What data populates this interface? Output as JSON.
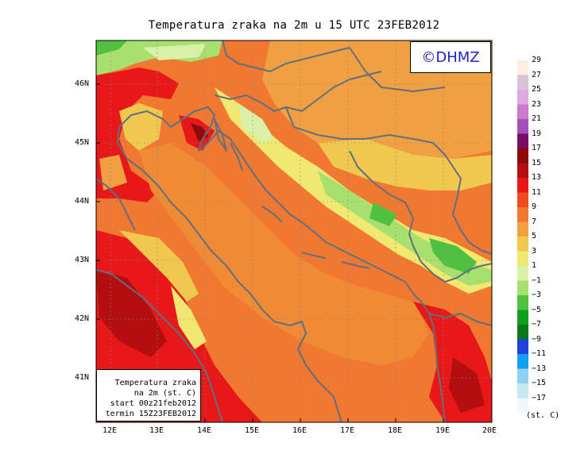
{
  "title": "Temperatura zraka na 2m u 15 UTC 23FEB2012",
  "logo": "©DHMZ",
  "info_box": [
    "Temperatura zraka",
    "na 2m (st. C)",
    "start 00z21feb2012",
    "termin 15Z23FEB2012"
  ],
  "lat_labels": [
    "46N",
    "45N",
    "44N",
    "43N",
    "42N",
    "41N"
  ],
  "lon_labels": [
    "12E",
    "13E",
    "14E",
    "15E",
    "16E",
    "17E",
    "18E",
    "19E",
    "20E"
  ],
  "legend": {
    "unit": "(st. C)",
    "levels": [
      "29",
      "27",
      "25",
      "23",
      "21",
      "19",
      "17",
      "15",
      "13",
      "11",
      "9",
      "7",
      "5",
      "3",
      "1",
      "−1",
      "−3",
      "−5",
      "−7",
      "−9",
      "−11",
      "−13",
      "−15",
      "−17"
    ],
    "colors": [
      "#fbeee0",
      "#d8c2d8",
      "#e0a8e0",
      "#cc7ad0",
      "#a050b8",
      "#7a0c6a",
      "#8c0a0a",
      "#b40f0f",
      "#e81818",
      "#f04a20",
      "#f07830",
      "#f0a040",
      "#f0c850",
      "#f0e870",
      "#d8f0a8",
      "#a8e070",
      "#50c040",
      "#10a020",
      "#0a7818",
      "#2040e0",
      "#10a0f0",
      "#90d0f0",
      "#c8e8f0",
      "#eef8fa"
    ]
  }
}
